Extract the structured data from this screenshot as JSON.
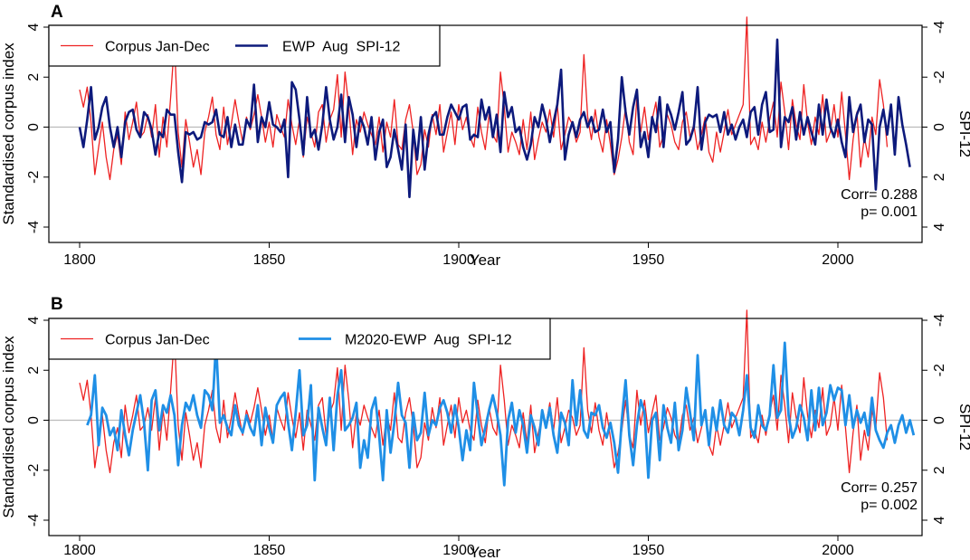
{
  "figure": {
    "colors": {
      "corpus": "#ee2222",
      "ewp": "#0d1a7c",
      "m2020": "#1f8fe6",
      "zero_line": "#bbbbbb",
      "frame": "#000000"
    }
  },
  "chart_data": [
    {
      "type": "line",
      "panel_label": "A",
      "xlabel": "Year",
      "ylabel": "Standardised corpus index",
      "y2label": "SPI-12",
      "xlim": [
        1800,
        2015
      ],
      "ylim": [
        -4,
        4
      ],
      "xticks": [
        "1800",
        "1850",
        "1900",
        "1950",
        "2000"
      ],
      "yticks": [
        "-4",
        "-2",
        "0",
        "2",
        "4"
      ],
      "y2ticks": [
        "4",
        "2",
        "0",
        "-2",
        "-4"
      ],
      "y2_inverted": true,
      "legend": [
        "Corpus Jan-Dec",
        "EWP  Aug  SPI-12"
      ],
      "stats": {
        "corr": "Corr= 0.288",
        "p": "p= 0.001"
      },
      "series": [
        {
          "name": "Corpus Jan-Dec",
          "axis": "left",
          "x_start": 1800,
          "values": [
            1.5,
            0.8,
            1.6,
            0.2,
            -1.9,
            -0.8,
            0.2,
            -1.2,
            -2.1,
            -0.9,
            -0.3,
            -1.5,
            0.6,
            -0.5,
            0.2,
            1.0,
            -0.4,
            -0.2,
            0.5,
            -0.4,
            0.9,
            -1.2,
            0.4,
            -0.8,
            1.2,
            3.4,
            -0.2,
            -1.6,
            0.3,
            -0.6,
            -1.6,
            -0.9,
            -1.9,
            -0.2,
            0.4,
            1.2,
            -0.3,
            -0.9,
            0.8,
            -0.7,
            0.1,
            1.1,
            0.2,
            -0.6,
            0.4,
            -0.1,
            0.5,
            1.3,
            0.4,
            -0.6,
            0.2,
            -0.8,
            0.5,
            0.0,
            -0.4,
            1.1,
            0.1,
            -0.7,
            0.3,
            -1.2,
            0.4,
            -0.2,
            -0.8,
            0.6,
            0.9,
            -0.6,
            0.3,
            0.7,
            2.1,
            -0.4,
            2.2,
            0.8,
            -1.1,
            0.3,
            -0.2,
            0.6,
            0.1,
            -0.3,
            -0.7,
            0.4,
            -1.0,
            0.2,
            -0.4,
            1.1,
            -0.7,
            -0.9,
            0.3,
            0.9,
            -0.2,
            -1.9,
            -1.5,
            -0.1,
            -0.8,
            0.5,
            -0.3,
            0.9,
            -1.0,
            -0.2,
            0.6,
            -0.7,
            0.9,
            -0.1,
            0.4,
            -0.4,
            -0.8,
            0.8,
            -0.2,
            -0.9,
            0.5,
            -0.3,
            -0.6,
            2.2,
            0.8,
            -1.0,
            -0.2,
            -0.6,
            -1.1,
            0.3,
            -0.9,
            0.6,
            -1.3,
            -0.5,
            0.2,
            -0.2,
            0.7,
            -0.4,
            0.9,
            -0.9,
            -0.3,
            0.4,
            0.1,
            -0.6,
            -0.2,
            2.9,
            0.4,
            -0.5,
            0.7,
            -0.4,
            -1.0,
            0.3,
            -0.7,
            -1.9,
            -1.3,
            -0.4,
            0.8,
            -0.6,
            -1.1,
            1.2,
            -0.2,
            0.8,
            -0.5,
            0.3,
            1.0,
            -0.8,
            -0.3,
            0.5,
            0.1,
            -0.6,
            -0.9,
            0.2,
            0.6,
            -0.4,
            0.1,
            -0.9,
            -0.3,
            0.4,
            -1.0,
            -1.4,
            -0.2,
            -1.0,
            -0.2,
            0.7,
            -0.3,
            0.1,
            0.5,
            0.9,
            4.4,
            -0.7,
            -0.4,
            -0.9,
            0.2,
            -0.6,
            0.3,
            1.0,
            -0.4,
            1.8,
            0.6,
            -0.9,
            1.1,
            0.1,
            -0.5,
            1.7,
            0.2,
            -0.7,
            0.4,
            -0.3,
            1.3,
            -0.6,
            -0.2,
            0.9,
            -0.4,
            1.4,
            -0.3,
            -2.1,
            -0.5,
            0.6,
            -1.6,
            -0.4,
            -1.2,
            0.4,
            -0.3,
            1.9,
            0.9,
            -0.8
          ]
        },
        {
          "name": "EWP  Aug  SPI-12",
          "axis": "right",
          "x_start": 1800,
          "values": [
            0.0,
            0.8,
            -0.3,
            -1.6,
            0.5,
            0.0,
            -0.8,
            -1.2,
            0.0,
            0.8,
            0.0,
            1.2,
            -0.2,
            -0.6,
            -0.7,
            0.1,
            0.4,
            -0.6,
            -0.4,
            0.1,
            1.1,
            0.2,
            0.4,
            -0.7,
            -0.5,
            -0.5,
            1.0,
            2.2,
            0.2,
            0.3,
            0.2,
            0.5,
            0.4,
            -0.2,
            -0.1,
            -0.2,
            -0.7,
            0.3,
            0.4,
            -0.4,
            0.8,
            -0.1,
            0.7,
            0.7,
            -0.3,
            0.0,
            -1.7,
            0.6,
            -0.4,
            0.0,
            -1.0,
            -0.1,
            0.0,
            0.2,
            -0.3,
            2.0,
            -1.8,
            -1.5,
            -0.3,
            1.1,
            -1.2,
            0.4,
            0.1,
            0.9,
            -0.1,
            -1.6,
            -0.3,
            0.5,
            0.0,
            -1.3,
            0.6,
            -1.2,
            -0.5,
            0.8,
            -0.4,
            0.0,
            0.7,
            -0.4,
            1.3,
            0.2,
            -0.3,
            1.6,
            1.2,
            0.1,
            0.9,
            1.7,
            -0.1,
            2.8,
            0.1,
            1.3,
            -0.4,
            1.7,
            0.3,
            -0.4,
            -0.6,
            0.3,
            0.3,
            -0.4,
            -0.9,
            -0.6,
            -0.3,
            -0.8,
            -0.9,
            0.5,
            0.3,
            0.4,
            -1.1,
            -0.3,
            -0.8,
            0.4,
            -0.5,
            1.0,
            -1.4,
            -0.4,
            -0.8,
            0.2,
            0.0,
            0.8,
            1.3,
            0.7,
            -0.4,
            0.0,
            -0.9,
            -0.3,
            0.6,
            -0.2,
            -0.9,
            -2.3,
            1.3,
            0.3,
            -0.2,
            0.4,
            -0.3,
            -0.6,
            0.0,
            -0.4,
            0.2,
            0.1,
            -0.7,
            0.2,
            -0.2,
            1.8,
            0.5,
            -2.0,
            -0.6,
            0.3,
            -0.8,
            -1.5,
            0.8,
            0.2,
            1.2,
            -0.4,
            0.2,
            -1.2,
            0.8,
            -0.9,
            -0.5,
            0.1,
            -0.6,
            -1.4,
            0.7,
            0.5,
            0.0,
            -1.6,
            0.9,
            -0.2,
            -0.5,
            -0.4,
            -0.5,
            0.2,
            -0.6,
            0.3,
            -0.1,
            0.5,
            0.0,
            -0.3,
            0.4,
            -0.6,
            -0.8,
            0.3,
            -0.9,
            -1.4,
            0.2,
            0.1,
            -3.5,
            0.8,
            -0.4,
            -0.2,
            -0.8,
            0.5,
            -0.6,
            0.3,
            -0.4,
            0.2,
            0.7,
            -0.9,
            0.3,
            -1.1,
            0.0,
            0.4,
            -0.3,
            0.6,
            1.2,
            -1.2,
            0.2,
            -0.5,
            -0.9,
            0.6,
            -0.3,
            -0.1,
            2.5,
            0.0,
            -0.7,
            0.3,
            -0.9,
            1.1,
            -1.2,
            -0.1,
            0.7,
            1.6
          ]
        }
      ]
    },
    {
      "type": "line",
      "panel_label": "B",
      "xlabel": "Year",
      "ylabel": "Standardised corpus index",
      "y2label": "SPI-12",
      "xlim": [
        1800,
        2015
      ],
      "ylim": [
        -4,
        4
      ],
      "xticks": [
        "1800",
        "1850",
        "1900",
        "1950",
        "2000"
      ],
      "yticks": [
        "-4",
        "-2",
        "0",
        "2",
        "4"
      ],
      "y2ticks": [
        "4",
        "2",
        "0",
        "-2",
        "-4"
      ],
      "y2_inverted": true,
      "legend": [
        "Corpus Jan-Dec",
        "M2020-EWP  Aug  SPI-12"
      ],
      "stats": {
        "corr": "Corr= 0.257",
        "p": "p= 0.002"
      },
      "series": [
        {
          "name": "Corpus Jan-Dec",
          "axis": "left",
          "x_start": 1800,
          "values": [
            1.5,
            0.8,
            1.6,
            0.2,
            -1.9,
            -0.8,
            0.2,
            -1.2,
            -2.1,
            -0.9,
            -0.3,
            -1.5,
            0.6,
            -0.5,
            0.2,
            1.0,
            -0.4,
            -0.2,
            0.5,
            -0.4,
            0.9,
            -1.2,
            0.4,
            -0.8,
            1.2,
            3.4,
            -0.2,
            -1.6,
            0.3,
            -0.6,
            -1.6,
            -0.9,
            -1.9,
            -0.2,
            0.4,
            1.2,
            -0.3,
            -0.9,
            0.8,
            -0.7,
            0.1,
            1.1,
            0.2,
            -0.6,
            0.4,
            -0.1,
            0.5,
            1.3,
            0.4,
            -0.6,
            0.2,
            -0.8,
            0.5,
            0.0,
            -0.4,
            1.1,
            0.1,
            -0.7,
            0.3,
            -1.2,
            0.4,
            -0.2,
            -0.8,
            0.6,
            0.9,
            -0.6,
            0.3,
            0.7,
            2.1,
            -0.4,
            2.2,
            0.8,
            -1.1,
            0.3,
            -0.2,
            0.6,
            0.1,
            -0.3,
            -0.7,
            0.4,
            -1.0,
            0.2,
            -0.4,
            1.1,
            -0.7,
            -0.9,
            0.3,
            0.9,
            -0.2,
            -1.9,
            -1.5,
            -0.1,
            -0.8,
            0.5,
            -0.3,
            0.9,
            -1.0,
            -0.2,
            0.6,
            -0.7,
            0.9,
            -0.1,
            0.4,
            -0.4,
            -0.8,
            0.8,
            -0.2,
            -0.9,
            0.5,
            -0.3,
            -0.6,
            2.2,
            0.8,
            -1.0,
            -0.2,
            -0.6,
            -1.1,
            0.3,
            -0.9,
            0.6,
            -1.3,
            -0.5,
            0.2,
            -0.2,
            0.7,
            -0.4,
            0.9,
            -0.9,
            -0.3,
            0.4,
            0.1,
            -0.6,
            -0.2,
            2.9,
            0.4,
            -0.5,
            0.7,
            -0.4,
            -1.0,
            0.3,
            -0.7,
            -1.9,
            -1.3,
            -0.4,
            0.8,
            -0.6,
            -1.1,
            1.2,
            -0.2,
            0.8,
            -0.5,
            0.3,
            1.0,
            -0.8,
            -0.3,
            0.5,
            0.1,
            -0.6,
            -0.9,
            0.2,
            0.6,
            -0.4,
            0.1,
            -0.9,
            -0.3,
            0.4,
            -1.0,
            -1.4,
            -0.2,
            -1.0,
            -0.2,
            0.7,
            -0.3,
            0.1,
            0.5,
            0.9,
            4.4,
            -0.7,
            -0.4,
            -0.9,
            0.2,
            -0.6,
            0.3,
            1.0,
            -0.4,
            1.8,
            0.6,
            -0.9,
            1.1,
            0.1,
            -0.5,
            1.7,
            0.2,
            -0.7,
            0.4,
            -0.3,
            1.3,
            -0.6,
            -0.2,
            0.9,
            -0.4,
            1.4,
            -0.3,
            -2.1,
            -0.5,
            0.6,
            -1.6,
            -0.4,
            -1.2,
            0.4,
            -0.3,
            1.9,
            0.9,
            -0.8
          ]
        },
        {
          "name": "M2020-EWP  Aug  SPI-12",
          "axis": "right",
          "x_start": 1802,
          "values": [
            0.2,
            -0.2,
            -1.8,
            1.0,
            -0.5,
            -0.2,
            0.6,
            0.3,
            1.2,
            -0.4,
            0.6,
            1.4,
            0.4,
            -0.3,
            -1.0,
            0.1,
            2.0,
            -0.8,
            -1.2,
            0.4,
            -0.6,
            -0.3,
            -1.0,
            -0.2,
            1.8,
            0.2,
            -0.7,
            -0.4,
            -1.0,
            -0.2,
            0.3,
            -1.2,
            -1.0,
            -0.4,
            -3.1,
            0.1,
            -0.2,
            0.3,
            0.6,
            -0.6,
            0.2,
            0.5,
            -0.2,
            0.3,
            0.6,
            -0.6,
            1.0,
            -0.5,
            0.3,
            0.9,
            -0.6,
            -0.9,
            -1.1,
            0.1,
            1.2,
            -0.3,
            -2.0,
            0.6,
            0.2,
            -1.4,
            2.4,
            -0.5,
            0.3,
            1.0,
            -0.9,
            1.2,
            -1.0,
            -2.0,
            0.4,
            0.2,
            -0.1,
            -0.7,
            1.9,
            0.8,
            1.5,
            -0.4,
            -0.9,
            0.6,
            2.4,
            -0.4,
            1.3,
            0.1,
            -1.5,
            -0.2,
            0.1,
            1.9,
            -0.3,
            0.8,
            0.5,
            -1.1,
            0.6,
            0.0,
            0.2,
            -0.5,
            -0.8,
            -0.3,
            0.5,
            -0.6,
            0.3,
            1.6,
            0.4,
            1.2,
            -1.5,
            -0.2,
            1.0,
            0.3,
            -0.4,
            -1.0,
            -0.3,
            0.6,
            2.6,
            0.0,
            -0.7,
            0.5,
            -0.4,
            0.2,
            1.3,
            -0.2,
            0.3,
            1.0,
            -0.4,
            0.3,
            -0.5,
            0.6,
            1.3,
            -0.3,
            0.1,
            1.0,
            -1.6,
            0.2,
            -1.2,
            0.4,
            0.7,
            -0.3,
            -0.2,
            -0.6,
            0.3,
            0.7,
            0.1,
            0.9,
            2.1,
            0.0,
            -1.6,
            0.6,
            1.8,
            0.2,
            -0.8,
            -0.3,
            2.3,
            0.0,
            -0.3,
            1.6,
            -0.6,
            0.3,
            0.9,
            -0.7,
            1.2,
            0.4,
            -1.3,
            -0.3,
            0.8,
            -2.6,
            0.2,
            -0.4,
            1.0,
            -0.5,
            0.4,
            -0.8,
            0.2,
            0.5,
            -0.3,
            -0.1,
            0.6,
            -0.4,
            -1.8,
            0.3,
            0.7,
            -0.6,
            0.2,
            0.4,
            -0.2,
            -2.2,
            -0.1,
            -0.4,
            -3.1,
            -0.2,
            0.7,
            0.3,
            -0.6,
            -0.1,
            0.8,
            -1.2,
            0.4,
            -1.3,
            0.2,
            -0.3,
            -1.4,
            -0.8,
            -1.3,
            -1.2,
            0.2,
            -1.0,
            0.3,
            -0.4,
            0.1,
            -0.3,
            0.6,
            -0.9,
            0.4,
            0.8,
            1.1,
            0.5,
            0.2,
            0.9,
            0.2,
            -0.2,
            0.5,
            0.0,
            0.6
          ]
        }
      ]
    }
  ]
}
